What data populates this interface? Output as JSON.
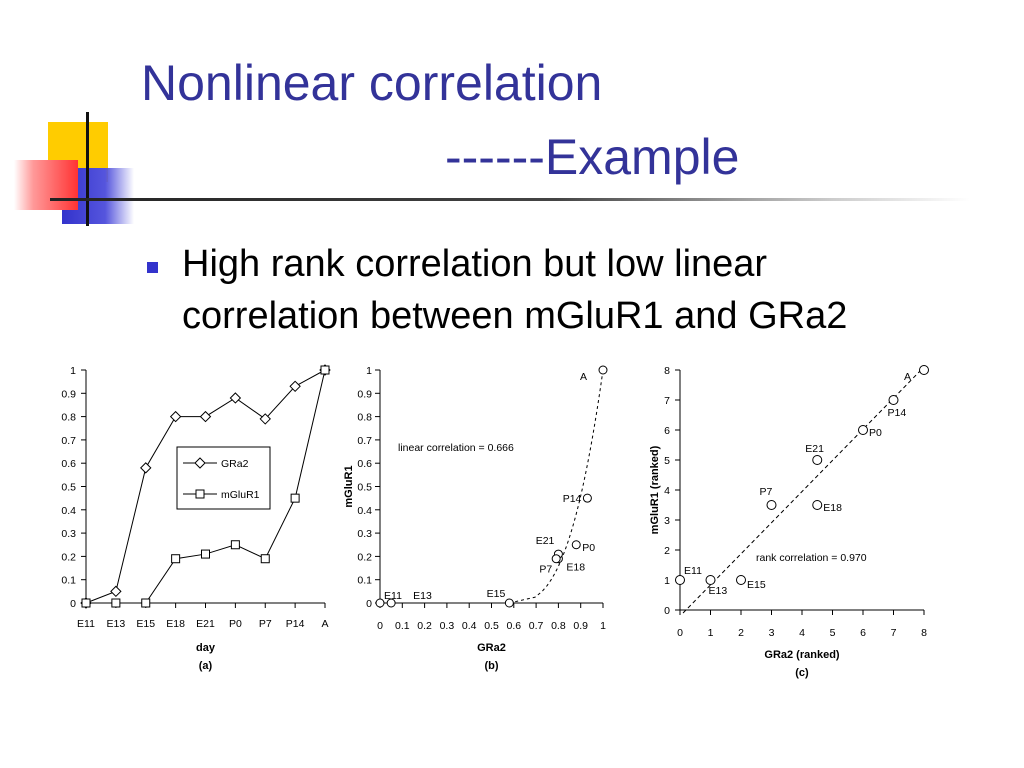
{
  "slide": {
    "title_line1": "Nonlinear correlation",
    "title_line2": "------Example",
    "bullet_line1": "High rank correlation but low linear",
    "bullet_line2": "correlation between mGluR1 and GRa2"
  },
  "colors": {
    "title": "#333399",
    "bullet": "#3333cc",
    "deco_yellow": "#ffcc00",
    "deco_blue": "#3333cc",
    "deco_red": "#ff3333"
  },
  "chart_data": [
    {
      "type": "line",
      "caption": "(a)",
      "xlabel": "day",
      "ylabel": "",
      "categories": [
        "E11",
        "E13",
        "E15",
        "E18",
        "E21",
        "P0",
        "P7",
        "P14",
        "A"
      ],
      "ylim": [
        0,
        1
      ],
      "yticks": [
        "0",
        "0.1",
        "0.2",
        "0.3",
        "0.4",
        "0.5",
        "0.6",
        "0.7",
        "0.8",
        "0.9",
        "1"
      ],
      "legend_position": "middle-right",
      "series": [
        {
          "name": "GRa2",
          "marker": "diamond",
          "values": [
            0,
            0.05,
            0.58,
            0.8,
            0.8,
            0.88,
            0.79,
            0.93,
            1.0
          ]
        },
        {
          "name": "mGluR1",
          "marker": "square",
          "values": [
            0,
            0,
            0,
            0.19,
            0.21,
            0.25,
            0.19,
            0.45,
            1.0
          ]
        }
      ]
    },
    {
      "type": "scatter",
      "caption": "(b)",
      "xlabel": "GRa2",
      "ylabel": "mGluR1",
      "xlim": [
        0,
        1
      ],
      "ylim": [
        0,
        1
      ],
      "xticks": [
        "0",
        "0.1",
        "0.2",
        "0.3",
        "0.4",
        "0.5",
        "0.6",
        "0.7",
        "0.8",
        "0.9",
        "1"
      ],
      "yticks": [
        "0",
        "0.1",
        "0.2",
        "0.3",
        "0.4",
        "0.5",
        "0.6",
        "0.7",
        "0.8",
        "0.9",
        "1"
      ],
      "annotation": "linear correlation = 0.666",
      "points": [
        {
          "label": "E11",
          "x": 0,
          "y": 0
        },
        {
          "label": "E13",
          "x": 0.05,
          "y": 0
        },
        {
          "label": "E15",
          "x": 0.58,
          "y": 0
        },
        {
          "label": "E18",
          "x": 0.8,
          "y": 0.19
        },
        {
          "label": "E21",
          "x": 0.8,
          "y": 0.21
        },
        {
          "label": "P0",
          "x": 0.88,
          "y": 0.25
        },
        {
          "label": "P7",
          "x": 0.79,
          "y": 0.19
        },
        {
          "label": "P14",
          "x": 0.93,
          "y": 0.45
        },
        {
          "label": "A",
          "x": 1.0,
          "y": 1.0
        }
      ]
    },
    {
      "type": "scatter",
      "caption": "(c)",
      "xlabel": "GRa2 (ranked)",
      "ylabel": "mGluR1 (ranked)",
      "xlim": [
        0,
        8
      ],
      "ylim": [
        0,
        8
      ],
      "xticks": [
        "0",
        "1",
        "2",
        "3",
        "4",
        "5",
        "6",
        "7",
        "8"
      ],
      "yticks": [
        "0",
        "1",
        "2",
        "3",
        "4",
        "5",
        "6",
        "7",
        "8"
      ],
      "annotation": "rank correlation = 0.970",
      "points": [
        {
          "label": "E11",
          "x": 0,
          "y": 1
        },
        {
          "label": "E13",
          "x": 1,
          "y": 1
        },
        {
          "label": "E15",
          "x": 2,
          "y": 1
        },
        {
          "label": "P7",
          "x": 3,
          "y": 3.5
        },
        {
          "label": "E21",
          "x": 4.5,
          "y": 5
        },
        {
          "label": "E18",
          "x": 4.5,
          "y": 3.5
        },
        {
          "label": "P0",
          "x": 6,
          "y": 6
        },
        {
          "label": "P14",
          "x": 7,
          "y": 7
        },
        {
          "label": "A",
          "x": 8,
          "y": 8
        }
      ]
    }
  ]
}
